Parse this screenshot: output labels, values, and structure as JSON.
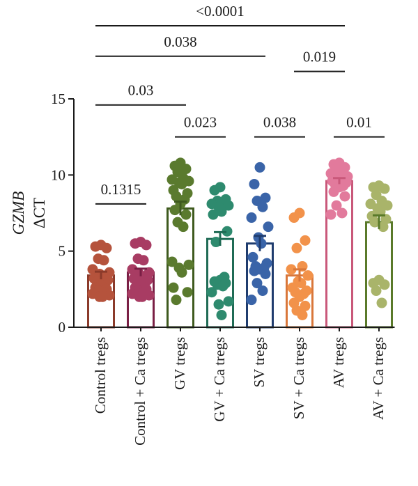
{
  "chart_data": {
    "type": "bar",
    "ylabel_gene": "GZMB",
    "ylabel_unit": "ΔCT",
    "ylim": [
      0,
      15
    ],
    "yticks": [
      0,
      5,
      10,
      15
    ],
    "categories": [
      "Control tregs",
      "Control + Ca tregs",
      "GV tregs",
      "GV + Ca tregs",
      "SV tregs",
      "SV + Ca tregs",
      "AV tregs",
      "AV + Ca tregs"
    ],
    "colors": [
      "#8b3a2a",
      "#7a1f45",
      "#3e5a1e",
      "#1f6b55",
      "#1f3c6e",
      "#d9773a",
      "#c9587a",
      "#5a7a2a"
    ],
    "point_colors": [
      "#b5533c",
      "#a83c63",
      "#5a7a2e",
      "#2e8a6e",
      "#3a64a8",
      "#f2924a",
      "#e27a9c",
      "#a9b46a"
    ],
    "means": [
      3.4,
      3.6,
      7.8,
      5.8,
      5.5,
      3.4,
      9.6,
      6.9
    ],
    "sems": [
      0.25,
      0.25,
      0.45,
      0.45,
      0.5,
      0.4,
      0.2,
      0.45
    ],
    "points": [
      [
        5.4,
        5.3,
        5.2,
        4.5,
        4.4,
        3.8,
        3.6,
        3.5,
        3.3,
        3.2,
        3.1,
        3.0,
        2.9,
        2.8,
        2.6,
        2.5,
        2.4,
        2.3,
        2.2,
        2.1,
        2.0,
        2.0
      ],
      [
        5.6,
        5.5,
        5.4,
        4.5,
        4.4,
        3.8,
        3.6,
        3.5,
        3.3,
        3.2,
        3.1,
        3.0,
        2.9,
        2.8,
        2.6,
        2.5,
        2.4,
        2.3,
        2.2,
        2.1,
        2.0,
        2.0
      ],
      [
        10.8,
        10.6,
        10.4,
        10.2,
        9.8,
        9.7,
        9.6,
        9.5,
        9.4,
        9.0,
        8.8,
        8.6,
        8.4,
        8.1,
        7.7,
        7.4,
        6.9,
        6.6,
        4.3,
        4.1,
        3.9,
        3.6,
        2.6,
        2.3,
        1.8
      ],
      [
        9.2,
        9.0,
        8.4,
        8.3,
        8.2,
        8.1,
        8.0,
        7.9,
        7.6,
        7.4,
        6.3,
        5.6,
        3.3,
        3.1,
        3.0,
        2.9,
        2.8,
        2.7,
        2.3,
        1.7,
        1.5,
        0.8
      ],
      [
        10.5,
        9.4,
        8.5,
        8.3,
        7.9,
        7.2,
        6.6,
        5.9,
        5.5,
        4.6,
        4.2,
        4.0,
        3.9,
        3.8,
        3.7,
        3.5,
        2.9,
        2.4,
        1.8
      ],
      [
        7.5,
        7.2,
        5.7,
        5.2,
        4.0,
        3.8,
        3.4,
        3.0,
        2.9,
        2.6,
        2.4,
        2.3,
        2.2,
        2.0,
        1.6,
        1.4,
        1.1,
        0.8
      ],
      [
        10.8,
        10.7,
        10.5,
        10.4,
        10.3,
        10.1,
        9.9,
        9.8,
        9.7,
        9.6,
        9.5,
        9.4,
        9.3,
        9.2,
        8.9,
        8.6,
        8.0,
        7.5,
        7.4
      ],
      [
        9.3,
        9.2,
        9.1,
        8.7,
        8.3,
        8.1,
        8.0,
        7.8,
        7.6,
        7.3,
        7.1,
        6.9,
        6.6,
        3.1,
        2.9,
        2.8,
        2.4,
        1.6
      ]
    ],
    "comparisons": [
      {
        "from": 0,
        "to": 1,
        "label": "0.1315",
        "level_y": 8.1
      },
      {
        "from": 0,
        "to": 2,
        "label": "0.03",
        "level_y": 14.6
      },
      {
        "from": 2,
        "to": 3,
        "label": "0.023",
        "level_y": 12.5
      },
      {
        "from": 4,
        "to": 5,
        "label": "0.038",
        "level_y": 12.5
      },
      {
        "from": 6,
        "to": 7,
        "label": "0.01",
        "level_y": 12.5
      },
      {
        "from": 0,
        "to": 4,
        "label": "0.038",
        "level_y": 17.8
      },
      {
        "from": 5,
        "to": 6,
        "label": "0.019",
        "level_y": 16.8
      },
      {
        "from": 0,
        "to": 6,
        "label": "<0.0001",
        "level_y": 19.8
      }
    ]
  }
}
